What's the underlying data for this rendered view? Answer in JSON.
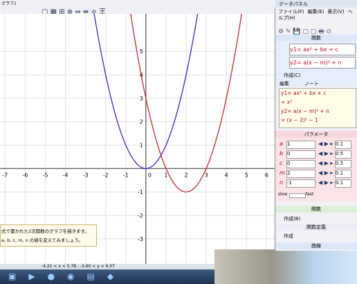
{
  "window": {
    "tab": "グラフ1"
  },
  "graph": {
    "xlim": [
      -7.25,
      6.4
    ],
    "ylim": [
      -4.1,
      6.6
    ],
    "xticks": [
      -7,
      -6,
      -5,
      -4,
      -3,
      -2,
      -1,
      0,
      1,
      2,
      3,
      4,
      5,
      6
    ],
    "yticks": [
      -3,
      -2,
      -1,
      1,
      2,
      3,
      4,
      5
    ],
    "curves": [
      {
        "color": "#2a2ad0"
      },
      {
        "color": "#d02030"
      }
    ]
  },
  "message": [
    "式で書かれた2次関数のグラフを描きます。",
    "a, b, c, m, n の値を変えてみましょう。"
  ],
  "status": "-4.21 < x < 5.78 , -3.60 < y < 6.07",
  "panel": {
    "title": "データパネル",
    "menu": [
      "ファイル(F)",
      "編集(E)",
      "表示(V)",
      "ヘルプ(H)"
    ],
    "functions_header": "関数",
    "y1": "y1= ax² + bx + c",
    "y2": "y2= a(x − m)² + n",
    "create": "作成(C)",
    "checks": [
      "編集",
      "ノート"
    ],
    "note": [
      "y1= ax² + bx + c",
      "= x²",
      "y2= a(x − m)² + n",
      "= (x − 2)² − 1"
    ],
    "params_header": "パラメータ",
    "params": [
      {
        "name": "a",
        "value": 1,
        "step": 0.1
      },
      {
        "name": "b",
        "value": 0,
        "step": 0.5
      },
      {
        "name": "c",
        "value": 0,
        "step": 0.5
      },
      {
        "name": "m",
        "value": 2,
        "step": 0.1
      },
      {
        "name": "n",
        "value": -1,
        "step": 0.1
      }
    ],
    "speed": [
      "slow",
      "fast"
    ],
    "func2_header": "関数",
    "create2": "作成(B)",
    "def_header": "関数定義",
    "create3": "作成",
    "curve_header": "曲線"
  }
}
